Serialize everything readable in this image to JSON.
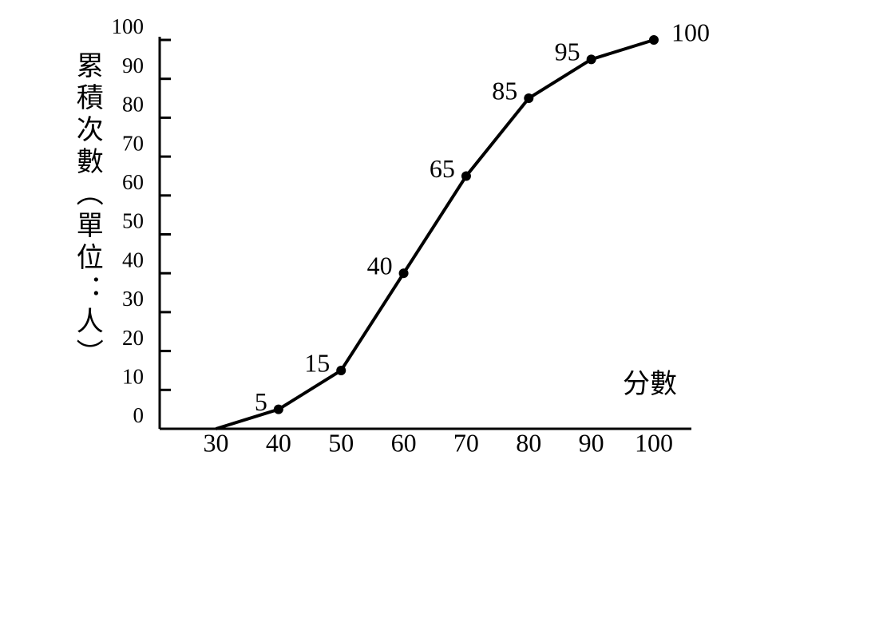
{
  "chart_data": {
    "type": "line",
    "y_label": "累積次數（單位：人）",
    "x_label": "分數",
    "x": [
      30,
      40,
      50,
      60,
      70,
      80,
      90,
      100
    ],
    "series": [
      {
        "color": "#000000",
        "values": [
          0,
          5,
          15,
          40,
          65,
          85,
          95,
          100
        ],
        "value_labels": [
          null,
          "5",
          "15",
          "40",
          "65",
          "85",
          "95",
          "100"
        ]
      }
    ],
    "xlim": [
      21,
      106
    ],
    "xticks": [
      30,
      40,
      50,
      60,
      70,
      80,
      90,
      100
    ],
    "ylim": [
      0,
      100
    ],
    "yticks": [
      0,
      10,
      20,
      30,
      40,
      50,
      60,
      70,
      80,
      90,
      100
    ]
  }
}
